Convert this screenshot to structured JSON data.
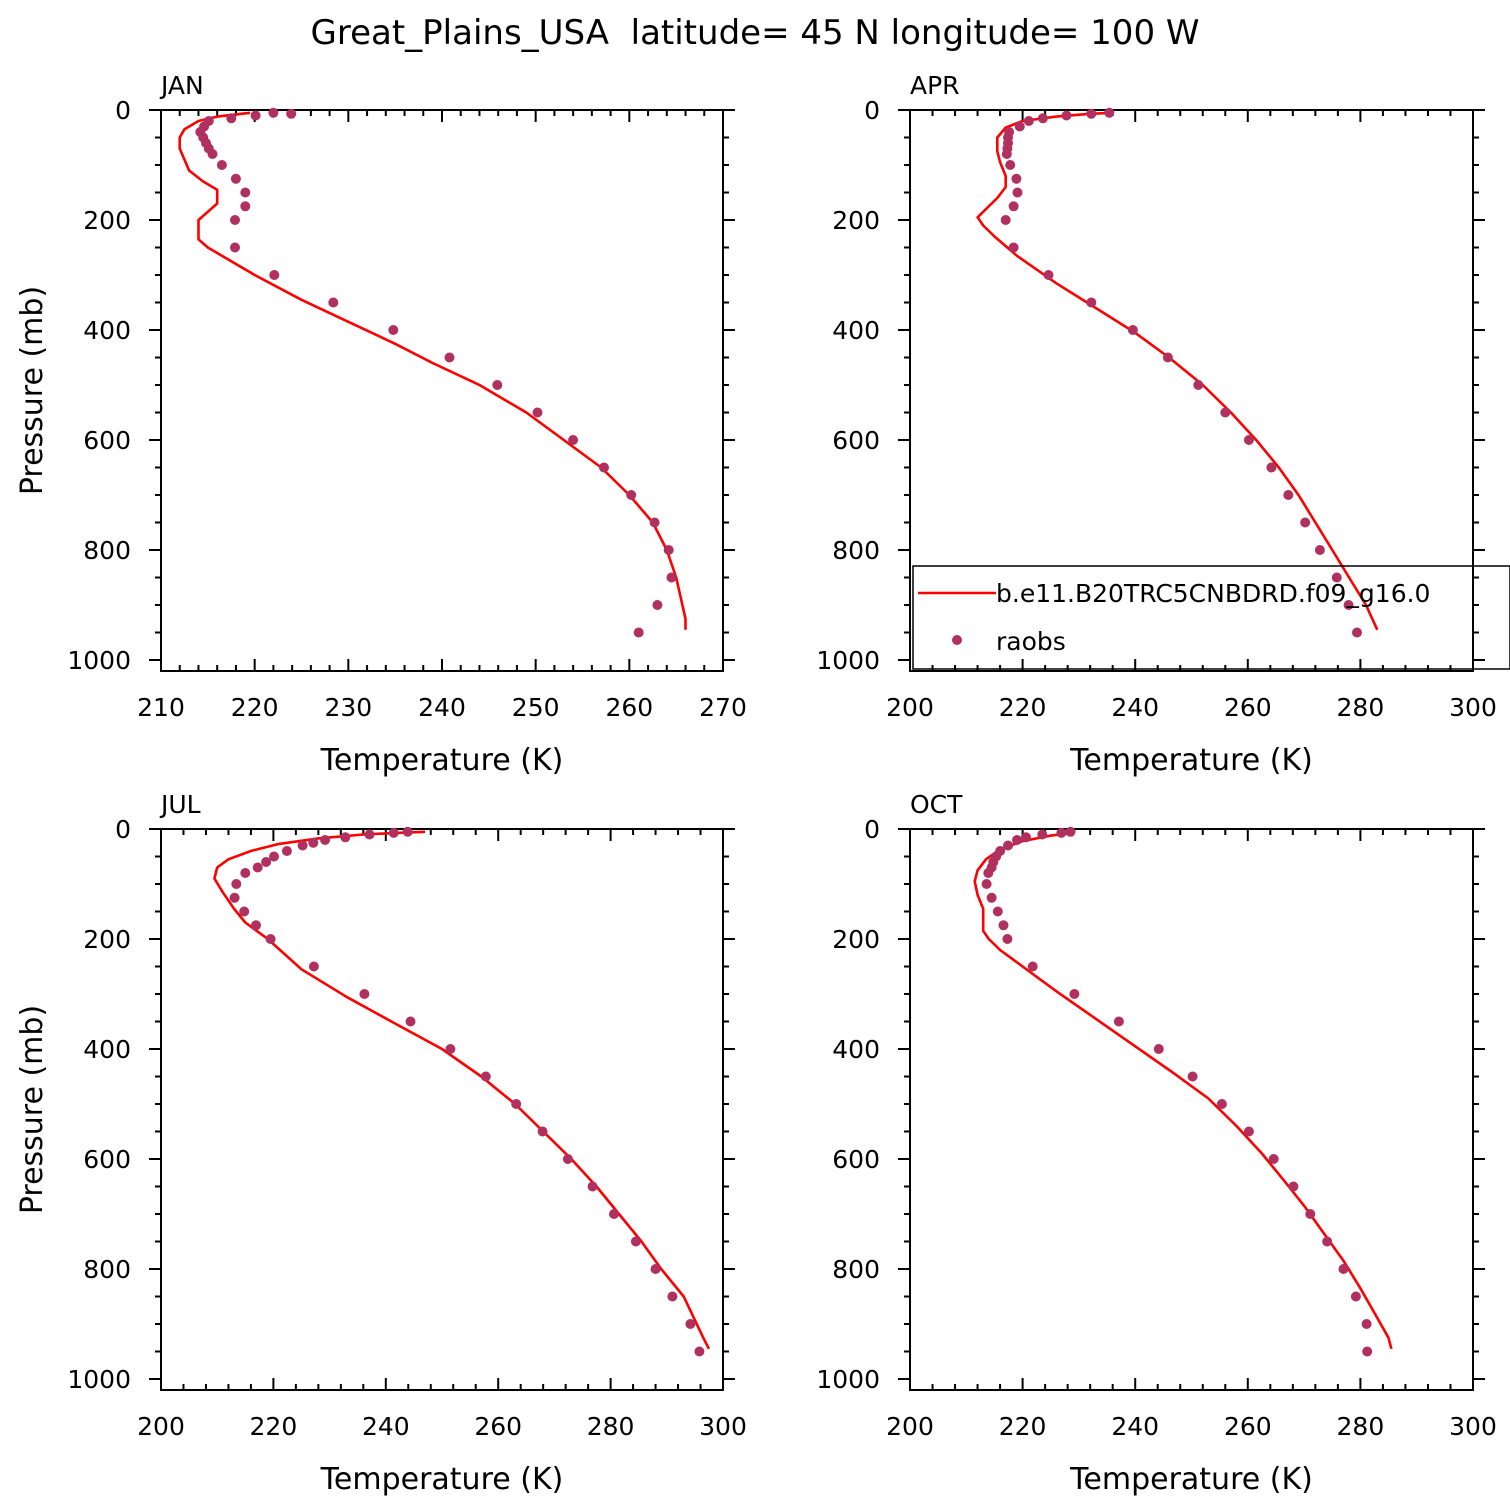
{
  "title": "Great_Plains_USA  latitude= 45 N longitude= 100 W",
  "colors": {
    "model": "#ff0000",
    "obs": "#b03060",
    "axis": "#000000"
  },
  "legend": {
    "model_label": "b.e11.B20TRC5CNBDRD.f09_g16.0",
    "obs_label": "raobs",
    "placement": "inside APR panel, lower"
  },
  "chart_data": [
    {
      "type": "line",
      "panel_title": "JAN",
      "xlabel": "Temperature (K)",
      "ylabel": "Pressure (mb)",
      "xlim": [
        210,
        270
      ],
      "ylim": [
        1020,
        0
      ],
      "xticks": [
        210,
        220,
        230,
        240,
        250,
        260,
        270
      ],
      "yticks": [
        0,
        200,
        400,
        600,
        800,
        1000
      ],
      "series": [
        {
          "name": "b.e11.B20TRC5CNBDRD.f09_g16.0",
          "kind": "line",
          "points": [
            [
              266,
              945
            ],
            [
              266,
              925
            ],
            [
              265,
              850
            ],
            [
              264,
              800
            ],
            [
              262.5,
              750
            ],
            [
              260,
              700
            ],
            [
              257,
              650
            ],
            [
              253,
              600
            ],
            [
              249,
              550
            ],
            [
              244,
              500
            ],
            [
              239,
              460
            ],
            [
              235,
              425
            ],
            [
              230,
              385
            ],
            [
              225,
              345
            ],
            [
              220,
              300
            ],
            [
              217,
              270
            ],
            [
              215,
              250
            ],
            [
              214,
              235
            ],
            [
              214,
              220
            ],
            [
              214,
              200
            ],
            [
              215,
              185
            ],
            [
              216,
              170
            ],
            [
              216,
              145
            ],
            [
              214.5,
              130
            ],
            [
              213,
              110
            ],
            [
              212.5,
              90
            ],
            [
              212,
              70
            ],
            [
              212,
              50
            ],
            [
              212.5,
              35
            ],
            [
              214,
              20
            ],
            [
              216,
              12
            ],
            [
              218,
              8
            ],
            [
              219.5,
              5
            ]
          ]
        },
        {
          "name": "raobs",
          "kind": "points",
          "points": [
            [
              261,
              950
            ],
            [
              263,
              900
            ],
            [
              264.5,
              850
            ],
            [
              264.2,
              800
            ],
            [
              262.7,
              750
            ],
            [
              260.2,
              700
            ],
            [
              257.3,
              650
            ],
            [
              254,
              600
            ],
            [
              250.2,
              550
            ],
            [
              245.9,
              500
            ],
            [
              240.8,
              450
            ],
            [
              234.8,
              400
            ],
            [
              228.4,
              350
            ],
            [
              222.1,
              300
            ],
            [
              217.9,
              250
            ],
            [
              217.9,
              200
            ],
            [
              219,
              175
            ],
            [
              219,
              150
            ],
            [
              218,
              125
            ],
            [
              216.5,
              100
            ],
            [
              215.5,
              80
            ],
            [
              215.1,
              70
            ],
            [
              214.8,
              60
            ],
            [
              214.5,
              50
            ],
            [
              214.2,
              40
            ],
            [
              214.6,
              30
            ],
            [
              215.1,
              20
            ],
            [
              217.5,
              15
            ],
            [
              220.1,
              10
            ],
            [
              222,
              5
            ],
            [
              223.9,
              7
            ]
          ]
        }
      ]
    },
    {
      "type": "line",
      "panel_title": "APR",
      "xlabel": "Temperature (K)",
      "ylabel": "",
      "xlim": [
        200,
        300
      ],
      "ylim": [
        1020,
        0
      ],
      "xticks": [
        200,
        220,
        240,
        260,
        280,
        300
      ],
      "yticks": [
        0,
        200,
        400,
        600,
        800,
        1000
      ],
      "series": [
        {
          "name": "b.e11.B20TRC5CNBDRD.f09_g16.0",
          "kind": "line",
          "points": [
            [
              283,
              945
            ],
            [
              281,
              900
            ],
            [
              278,
              850
            ],
            [
              275,
              800
            ],
            [
              272,
              750
            ],
            [
              269,
              700
            ],
            [
              265.5,
              650
            ],
            [
              261.5,
              600
            ],
            [
              257,
              550
            ],
            [
              252,
              500
            ],
            [
              246,
              450
            ],
            [
              240,
              405
            ],
            [
              233,
              360
            ],
            [
              226,
              315
            ],
            [
              219,
              265
            ],
            [
              215,
              230
            ],
            [
              213,
              210
            ],
            [
              212,
              195
            ],
            [
              213.5,
              180
            ],
            [
              215.5,
              160
            ],
            [
              217,
              140
            ],
            [
              217,
              120
            ],
            [
              216,
              95
            ],
            [
              215.5,
              75
            ],
            [
              215.5,
              50
            ],
            [
              217,
              32
            ],
            [
              220,
              20
            ],
            [
              226,
              12
            ],
            [
              232,
              7
            ],
            [
              236,
              5
            ]
          ]
        },
        {
          "name": "raobs",
          "kind": "points",
          "points": [
            [
              279.4,
              950
            ],
            [
              277.9,
              900
            ],
            [
              275.8,
              850
            ],
            [
              272.8,
              800
            ],
            [
              270.2,
              750
            ],
            [
              267.2,
              700
            ],
            [
              264.2,
              650
            ],
            [
              260.2,
              600
            ],
            [
              256,
              550
            ],
            [
              251.2,
              500
            ],
            [
              245.8,
              450
            ],
            [
              239.6,
              400
            ],
            [
              232.2,
              350
            ],
            [
              224.6,
              300
            ],
            [
              218.4,
              250
            ],
            [
              217,
              200
            ],
            [
              218.4,
              175
            ],
            [
              219.1,
              150
            ],
            [
              218.9,
              125
            ],
            [
              217.8,
              100
            ],
            [
              217.2,
              80
            ],
            [
              217.3,
              70
            ],
            [
              217.4,
              60
            ],
            [
              217.4,
              50
            ],
            [
              217.6,
              40
            ],
            [
              219.5,
              30
            ],
            [
              221.1,
              20
            ],
            [
              223.6,
              15
            ],
            [
              227.8,
              10
            ],
            [
              232.2,
              7
            ],
            [
              235.4,
              5
            ]
          ]
        }
      ]
    },
    {
      "type": "line",
      "panel_title": "JUL",
      "xlabel": "Temperature (K)",
      "ylabel": "Pressure (mb)",
      "xlim": [
        200,
        300
      ],
      "ylim": [
        1020,
        0
      ],
      "xticks": [
        200,
        220,
        240,
        260,
        280,
        300
      ],
      "yticks": [
        0,
        200,
        400,
        600,
        800,
        1000
      ],
      "series": [
        {
          "name": "b.e11.B20TRC5CNBDRD.f09_g16.0",
          "kind": "line",
          "points": [
            [
              297.5,
              945
            ],
            [
              296.5,
              925
            ],
            [
              293,
              850
            ],
            [
              289,
              800
            ],
            [
              285.5,
              750
            ],
            [
              281.5,
              700
            ],
            [
              277.5,
              650
            ],
            [
              273,
              600
            ],
            [
              268,
              550
            ],
            [
              263,
              500
            ],
            [
              257,
              450
            ],
            [
              250,
              400
            ],
            [
              241,
              350
            ],
            [
              233,
              305
            ],
            [
              225,
              255
            ],
            [
              219,
              200
            ],
            [
              215,
              170
            ],
            [
              213,
              145
            ],
            [
              211,
              115
            ],
            [
              209.5,
              90
            ],
            [
              210,
              70
            ],
            [
              212,
              55
            ],
            [
              216,
              40
            ],
            [
              221,
              27
            ],
            [
              228,
              17
            ],
            [
              236,
              10
            ],
            [
              242,
              7
            ],
            [
              247,
              5
            ]
          ]
        },
        {
          "name": "raobs",
          "kind": "points",
          "points": [
            [
              295.8,
              950
            ],
            [
              294.2,
              900
            ],
            [
              291,
              850
            ],
            [
              288,
              800
            ],
            [
              284.5,
              750
            ],
            [
              280.6,
              700
            ],
            [
              276.8,
              650
            ],
            [
              272.4,
              600
            ],
            [
              267.9,
              550
            ],
            [
              263.2,
              500
            ],
            [
              257.8,
              450
            ],
            [
              251.5,
              400
            ],
            [
              244.4,
              350
            ],
            [
              236.2,
              300
            ],
            [
              227.2,
              250
            ],
            [
              219.5,
              200
            ],
            [
              216.9,
              175
            ],
            [
              214.8,
              150
            ],
            [
              213.1,
              125
            ],
            [
              213.4,
              100
            ],
            [
              215,
              80
            ],
            [
              217.2,
              70
            ],
            [
              218.7,
              60
            ],
            [
              220.1,
              50
            ],
            [
              222.4,
              40
            ],
            [
              225.2,
              30
            ],
            [
              227.1,
              25
            ],
            [
              229.2,
              20
            ],
            [
              232.8,
              15
            ],
            [
              237.1,
              10
            ],
            [
              241.4,
              7
            ],
            [
              243.9,
              5
            ]
          ]
        }
      ]
    },
    {
      "type": "line",
      "panel_title": "OCT",
      "xlabel": "Temperature (K)",
      "ylabel": "",
      "xlim": [
        200,
        300
      ],
      "ylim": [
        1020,
        0
      ],
      "xticks": [
        200,
        220,
        240,
        260,
        280,
        300
      ],
      "yticks": [
        0,
        200,
        400,
        600,
        800,
        1000
      ],
      "series": [
        {
          "name": "b.e11.B20TRC5CNBDRD.f09_g16.0",
          "kind": "line",
          "points": [
            [
              285.5,
              945
            ],
            [
              285,
              925
            ],
            [
              282.5,
              880
            ],
            [
              280,
              835
            ],
            [
              277,
              785
            ],
            [
              273.5,
              735
            ],
            [
              270,
              685
            ],
            [
              266.5,
              640
            ],
            [
              262.5,
              590
            ],
            [
              258,
              540
            ],
            [
              253,
              490
            ],
            [
              247,
              445
            ],
            [
              240,
              395
            ],
            [
              233,
              345
            ],
            [
              226,
              295
            ],
            [
              220,
              250
            ],
            [
              216,
              220
            ],
            [
              214,
              200
            ],
            [
              213,
              185
            ],
            [
              213,
              165
            ],
            [
              213,
              145
            ],
            [
              212,
              120
            ],
            [
              211.5,
              95
            ],
            [
              212,
              75
            ],
            [
              213.5,
              55
            ],
            [
              216,
              37
            ],
            [
              220,
              22
            ],
            [
              225,
              12
            ],
            [
              229,
              7
            ]
          ]
        },
        {
          "name": "raobs",
          "kind": "points",
          "points": [
            [
              281.2,
              950
            ],
            [
              281.1,
              900
            ],
            [
              279.2,
              850
            ],
            [
              277,
              800
            ],
            [
              274.1,
              750
            ],
            [
              271.1,
              700
            ],
            [
              268.1,
              650
            ],
            [
              264.6,
              600
            ],
            [
              260.2,
              550
            ],
            [
              255.4,
              500
            ],
            [
              250.2,
              450
            ],
            [
              244.2,
              400
            ],
            [
              237.1,
              350
            ],
            [
              229.2,
              300
            ],
            [
              221.8,
              250
            ],
            [
              217.3,
              200
            ],
            [
              216.6,
              175
            ],
            [
              215.6,
              150
            ],
            [
              214.5,
              125
            ],
            [
              213.6,
              100
            ],
            [
              213.9,
              80
            ],
            [
              214.5,
              70
            ],
            [
              214.8,
              60
            ],
            [
              215.3,
              50
            ],
            [
              216,
              40
            ],
            [
              217.4,
              30
            ],
            [
              219,
              20
            ],
            [
              220.6,
              15
            ],
            [
              223.5,
              10
            ],
            [
              226.9,
              7
            ],
            [
              228.5,
              5
            ]
          ]
        }
      ]
    }
  ]
}
